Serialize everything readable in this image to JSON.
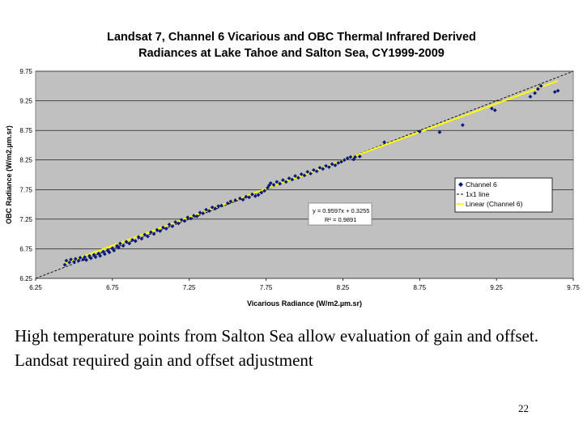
{
  "chart_data": {
    "type": "scatter",
    "title_lines": [
      "Landsat 7, Channel 6 Vicarious and OBC Thermal Infrared Derived",
      "Radiances at Lake Tahoe and Salton Sea, CY1999-2009"
    ],
    "xlabel": "Vicarious Radiance (W/m2.µm.sr)",
    "ylabel": "OBC Radiance (W/m2.µm.sr)",
    "xlim": [
      6.25,
      9.75
    ],
    "ylim": [
      6.25,
      9.75
    ],
    "xticks": [
      "6.25",
      "6.75",
      "7.25",
      "7.75",
      "8.25",
      "8.75",
      "9.25",
      "9.75"
    ],
    "yticks": [
      "6.25",
      "6.75",
      "7.25",
      "7.75",
      "8.25",
      "8.75",
      "9.25",
      "9.75"
    ],
    "grid": "horizontal",
    "legend_position": "right",
    "plot_background": "#c0c0c0",
    "series": [
      {
        "name": "Channel 6",
        "kind": "scatter",
        "color": "#0a1a7a",
        "marker": "diamond",
        "points": [
          [
            6.44,
            6.48
          ],
          [
            6.45,
            6.55
          ],
          [
            6.47,
            6.52
          ],
          [
            6.48,
            6.57
          ],
          [
            6.5,
            6.53
          ],
          [
            6.51,
            6.58
          ],
          [
            6.53,
            6.55
          ],
          [
            6.54,
            6.6
          ],
          [
            6.56,
            6.57
          ],
          [
            6.57,
            6.61
          ],
          [
            6.58,
            6.56
          ],
          [
            6.6,
            6.63
          ],
          [
            6.61,
            6.59
          ],
          [
            6.63,
            6.65
          ],
          [
            6.64,
            6.61
          ],
          [
            6.66,
            6.67
          ],
          [
            6.67,
            6.63
          ],
          [
            6.69,
            6.7
          ],
          [
            6.7,
            6.66
          ],
          [
            6.72,
            6.72
          ],
          [
            6.73,
            6.69
          ],
          [
            6.75,
            6.76
          ],
          [
            6.76,
            6.72
          ],
          [
            6.78,
            6.8
          ],
          [
            6.79,
            6.77
          ],
          [
            6.8,
            6.84
          ],
          [
            6.82,
            6.8
          ],
          [
            6.84,
            6.87
          ],
          [
            6.86,
            6.84
          ],
          [
            6.88,
            6.9
          ],
          [
            6.9,
            6.88
          ],
          [
            6.92,
            6.95
          ],
          [
            6.94,
            6.92
          ],
          [
            6.96,
            6.99
          ],
          [
            6.98,
            6.96
          ],
          [
            7.0,
            7.03
          ],
          [
            7.02,
            7.0
          ],
          [
            7.04,
            7.07
          ],
          [
            7.06,
            7.05
          ],
          [
            7.08,
            7.11
          ],
          [
            7.1,
            7.09
          ],
          [
            7.12,
            7.16
          ],
          [
            7.14,
            7.13
          ],
          [
            7.16,
            7.2
          ],
          [
            7.18,
            7.18
          ],
          [
            7.2,
            7.24
          ],
          [
            7.22,
            7.22
          ],
          [
            7.24,
            7.28
          ],
          [
            7.26,
            7.26
          ],
          [
            7.28,
            7.31
          ],
          [
            7.3,
            7.3
          ],
          [
            7.32,
            7.36
          ],
          [
            7.34,
            7.35
          ],
          [
            7.36,
            7.41
          ],
          [
            7.38,
            7.39
          ],
          [
            7.4,
            7.45
          ],
          [
            7.42,
            7.43
          ],
          [
            7.44,
            7.47
          ],
          [
            7.46,
            7.48
          ],
          [
            7.5,
            7.52
          ],
          [
            7.52,
            7.55
          ],
          [
            7.55,
            7.57
          ],
          [
            7.58,
            7.6
          ],
          [
            7.6,
            7.58
          ],
          [
            7.62,
            7.63
          ],
          [
            7.64,
            7.62
          ],
          [
            7.66,
            7.67
          ],
          [
            7.68,
            7.64
          ],
          [
            7.7,
            7.66
          ],
          [
            7.72,
            7.7
          ],
          [
            7.74,
            7.73
          ],
          [
            7.76,
            7.78
          ],
          [
            7.77,
            7.82
          ],
          [
            7.78,
            7.86
          ],
          [
            7.8,
            7.83
          ],
          [
            7.82,
            7.88
          ],
          [
            7.84,
            7.85
          ],
          [
            7.86,
            7.91
          ],
          [
            7.88,
            7.88
          ],
          [
            7.9,
            7.94
          ],
          [
            7.92,
            7.92
          ],
          [
            7.94,
            7.98
          ],
          [
            7.96,
            7.95
          ],
          [
            7.98,
            8.01
          ],
          [
            8.0,
            7.99
          ],
          [
            8.02,
            8.05
          ],
          [
            8.04,
            8.02
          ],
          [
            8.06,
            8.08
          ],
          [
            8.08,
            8.06
          ],
          [
            8.1,
            8.12
          ],
          [
            8.12,
            8.1
          ],
          [
            8.14,
            8.15
          ],
          [
            8.16,
            8.13
          ],
          [
            8.18,
            8.18
          ],
          [
            8.2,
            8.16
          ],
          [
            8.22,
            8.2
          ],
          [
            8.24,
            8.22
          ],
          [
            8.26,
            8.25
          ],
          [
            8.28,
            8.28
          ],
          [
            8.3,
            8.3
          ],
          [
            8.32,
            8.26
          ],
          [
            8.33,
            8.3
          ],
          [
            8.36,
            8.31
          ],
          [
            8.52,
            8.55
          ],
          [
            8.75,
            8.73
          ],
          [
            8.88,
            8.72
          ],
          [
            9.03,
            8.84
          ],
          [
            9.22,
            9.12
          ],
          [
            9.24,
            9.09
          ],
          [
            9.47,
            9.32
          ],
          [
            9.5,
            9.38
          ],
          [
            9.52,
            9.45
          ],
          [
            9.54,
            9.5
          ],
          [
            9.63,
            9.4
          ],
          [
            9.65,
            9.42
          ]
        ]
      },
      {
        "name": "1x1 line",
        "kind": "line",
        "color": "#000000",
        "dash": "dashed",
        "slope": 1,
        "intercept": 0
      },
      {
        "name": "Linear (Channel 6)",
        "kind": "line",
        "color": "#ffff00",
        "slope": 0.9597,
        "intercept": 0.3255,
        "x_range": [
          6.44,
          9.65
        ]
      }
    ],
    "annotations": [
      {
        "text": "y = 0.9597x + 0.3255"
      },
      {
        "text": "R² = 0.9891"
      }
    ]
  },
  "caption": "High temperature points from Salton Sea allow evaluation of gain and offset. Landsat required gain and offset adjustment",
  "page_number": "22"
}
